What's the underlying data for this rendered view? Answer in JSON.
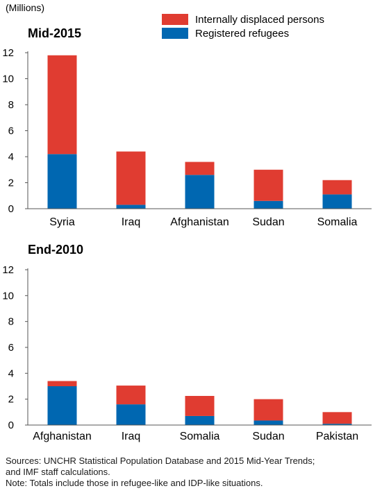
{
  "figure": {
    "unit_label": "(Millions)",
    "legend": [
      {
        "label": "Internally displaced persons",
        "color": "#e03c31"
      },
      {
        "label": "Registered refugees",
        "color": "#0067b1"
      }
    ],
    "sources": "Sources: UNCHR Statistical Population Database and 2015 Mid-Year Trends;",
    "sources_cont": "and IMF staff calculations.",
    "note": "Note: Totals include those in refugee-like and IDP-like situations."
  },
  "chart_data": [
    {
      "type": "bar",
      "stacked": true,
      "title": "Mid-2015",
      "categories": [
        "Syria",
        "Iraq",
        "Afghanistan",
        "Sudan",
        "Somalia"
      ],
      "series": [
        {
          "name": "Registered refugees",
          "values": [
            4.2,
            0.3,
            2.6,
            0.6,
            1.1
          ],
          "color": "#0067b1"
        },
        {
          "name": "Internally displaced persons",
          "values": [
            7.6,
            4.1,
            1.0,
            2.4,
            1.1
          ],
          "color": "#e03c31"
        }
      ],
      "ylim": [
        0,
        12
      ],
      "yticks": [
        0,
        2,
        4,
        6,
        8,
        10,
        12
      ],
      "grid": false
    },
    {
      "type": "bar",
      "stacked": true,
      "title": "End-2010",
      "categories": [
        "Afghanistan",
        "Iraq",
        "Somalia",
        "Sudan",
        "Pakistan"
      ],
      "series": [
        {
          "name": "Registered refugees",
          "values": [
            3.0,
            1.6,
            0.7,
            0.35,
            0.1
          ],
          "color": "#0067b1"
        },
        {
          "name": "Internally displaced persons",
          "values": [
            0.4,
            1.45,
            1.55,
            1.65,
            0.9
          ],
          "color": "#e03c31"
        }
      ],
      "ylim": [
        0,
        12
      ],
      "yticks": [
        0,
        2,
        4,
        6,
        8,
        10,
        12
      ],
      "grid": false
    }
  ]
}
